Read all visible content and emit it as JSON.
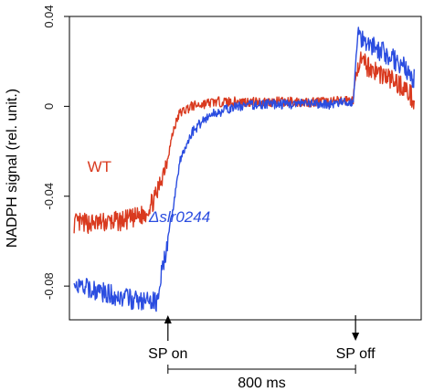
{
  "chart_data": {
    "type": "line",
    "title": "",
    "xlabel": "",
    "ylabel": "NADPH signal (rel. unit.)",
    "ylim": [
      -0.095,
      0.04
    ],
    "yticks": [
      {
        "value": -0.08,
        "label": "-0.08"
      },
      {
        "value": -0.04,
        "label": "-0.04"
      },
      {
        "value": 0,
        "label": "0"
      },
      {
        "value": 0.04,
        "label": "0.04"
      }
    ],
    "xlim": [
      -420,
      1080
    ],
    "grid": false,
    "series": [
      {
        "name": "WT",
        "color": "#d93a1f",
        "x": [
          -400,
          -300,
          -200,
          -150,
          -100,
          -50,
          0,
          25,
          50,
          100,
          150,
          200,
          300,
          400,
          500,
          600,
          700,
          790,
          810,
          850,
          900,
          950,
          1000,
          1050
        ],
        "y": [
          -0.052,
          -0.052,
          -0.051,
          -0.05,
          -0.048,
          -0.04,
          -0.022,
          -0.01,
          -0.003,
          0.0,
          0.001,
          0.002,
          0.002,
          0.002,
          0.002,
          0.002,
          0.002,
          0.003,
          0.02,
          0.018,
          0.015,
          0.012,
          0.009,
          0.003
        ]
      },
      {
        "name": "Δslr0244",
        "color": "#2b4de0",
        "x": [
          -400,
          -300,
          -200,
          -150,
          -100,
          -50,
          0,
          50,
          100,
          150,
          200,
          300,
          400,
          500,
          600,
          700,
          790,
          810,
          850,
          900,
          950,
          1000,
          1050
        ],
        "y": [
          -0.08,
          -0.082,
          -0.085,
          -0.086,
          -0.087,
          -0.087,
          -0.06,
          -0.025,
          -0.012,
          -0.006,
          -0.003,
          0.0,
          0.001,
          0.001,
          0.001,
          0.001,
          0.002,
          0.032,
          0.029,
          0.025,
          0.022,
          0.018,
          0.012
        ]
      }
    ],
    "annotations": {
      "sp_on": {
        "label": "SP on",
        "x": 0
      },
      "sp_off": {
        "label": "SP off",
        "x": 800
      },
      "duration": {
        "label": "800 ms"
      }
    }
  }
}
